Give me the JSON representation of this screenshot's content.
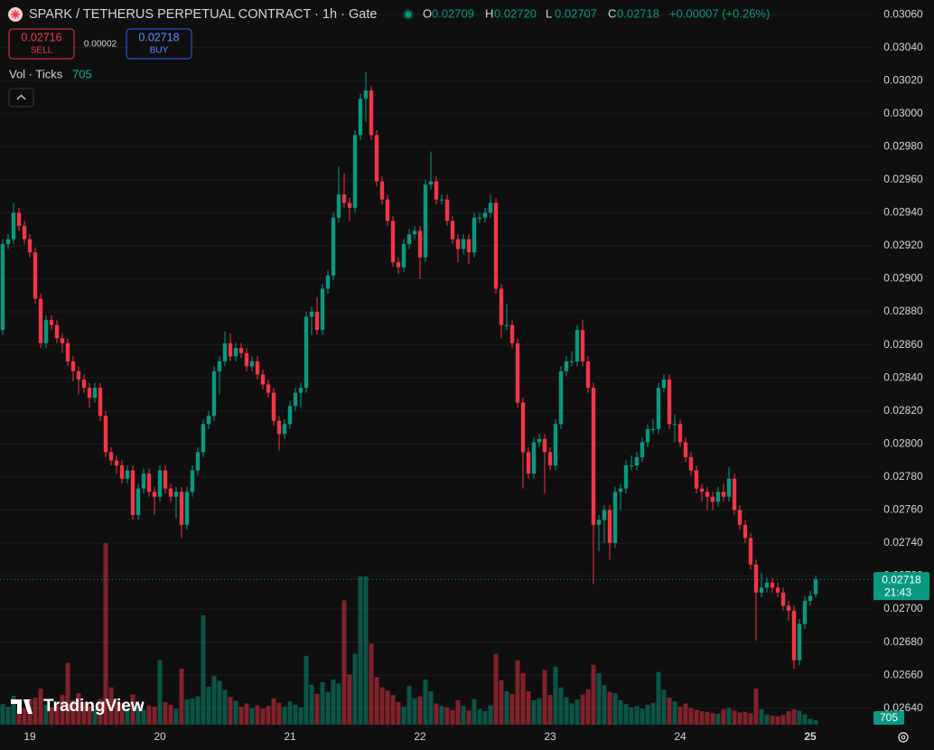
{
  "chart_data": {
    "type": "candlestick",
    "title": "SPARK / TETHERUS PERPETUAL CONTRACT · 1h · Gate",
    "legend_letters": [
      "O",
      "H",
      "L",
      "C"
    ],
    "legend_values": [
      "0.02709",
      "0.02720",
      "0.02707",
      "0.02718"
    ],
    "change": "+0.00007 (+0.26%)",
    "sell": {
      "price": 0.02716,
      "label": "SELL"
    },
    "buy": {
      "price": 0.02718,
      "label": "BUY"
    },
    "spread": 2e-05,
    "volume_title": "Vol · Ticks",
    "countdown": "21:43",
    "brand": "TradingView",
    "up_color": "#089981",
    "down_color": "#f23645",
    "grid": true,
    "ylim": [
      0.0263,
      0.030688
    ],
    "yticks": [
      {
        "value": 0.0264,
        "label": "0.02640"
      },
      {
        "value": 0.0266,
        "label": "0.02660"
      },
      {
        "value": 0.0268,
        "label": "0.02680"
      },
      {
        "value": 0.027,
        "label": "0.02700"
      },
      {
        "value": 0.0272,
        "label": "0.02720"
      },
      {
        "value": 0.0274,
        "label": "0.02740"
      },
      {
        "value": 0.0276,
        "label": "0.02760"
      },
      {
        "value": 0.0278,
        "label": "0.02780"
      },
      {
        "value": 0.028,
        "label": "0.02800"
      },
      {
        "value": 0.0282,
        "label": "0.02820"
      },
      {
        "value": 0.0284,
        "label": "0.02840"
      },
      {
        "value": 0.0286,
        "label": "0.02860"
      },
      {
        "value": 0.0288,
        "label": "0.02880"
      },
      {
        "value": 0.029,
        "label": "0.02900"
      },
      {
        "value": 0.0292,
        "label": "0.02920"
      },
      {
        "value": 0.0294,
        "label": "0.02940"
      },
      {
        "value": 0.0296,
        "label": "0.02960"
      },
      {
        "value": 0.0298,
        "label": "0.02980"
      },
      {
        "value": 0.03,
        "label": "0.03000"
      },
      {
        "value": 0.0302,
        "label": "0.03020"
      },
      {
        "value": 0.0304,
        "label": "0.03040"
      },
      {
        "value": 0.0306,
        "label": "0.03060"
      }
    ],
    "categories": [
      null,
      null,
      null,
      null,
      null,
      "19",
      null,
      null,
      null,
      null,
      null,
      null,
      null,
      null,
      null,
      null,
      null,
      null,
      null,
      null,
      null,
      null,
      null,
      null,
      null,
      null,
      null,
      null,
      null,
      "20",
      null,
      null,
      null,
      null,
      null,
      null,
      null,
      null,
      null,
      null,
      null,
      null,
      null,
      null,
      null,
      null,
      null,
      null,
      null,
      null,
      null,
      null,
      null,
      "21",
      null,
      null,
      null,
      null,
      null,
      null,
      null,
      null,
      null,
      null,
      null,
      null,
      null,
      null,
      null,
      null,
      null,
      null,
      null,
      null,
      null,
      null,
      null,
      "22",
      null,
      null,
      null,
      null,
      null,
      null,
      null,
      null,
      null,
      null,
      null,
      null,
      null,
      null,
      null,
      null,
      null,
      null,
      null,
      null,
      null,
      null,
      null,
      "23",
      null,
      null,
      null,
      null,
      null,
      null,
      null,
      null,
      null,
      null,
      null,
      null,
      null,
      null,
      null,
      null,
      null,
      null,
      null,
      null,
      null,
      null,
      null,
      "24",
      null,
      null,
      null,
      null,
      null,
      null,
      null,
      null,
      null,
      null,
      null,
      null,
      null,
      null,
      null,
      null,
      null,
      null,
      null,
      null,
      null,
      null,
      null,
      "25",
      null
    ],
    "ohlc": [
      [
        0.02869,
        0.02924,
        0.02866,
        0.02921
      ],
      [
        0.02921,
        0.02927,
        0.02918,
        0.02924
      ],
      [
        0.02924,
        0.02946,
        0.02921,
        0.0294
      ],
      [
        0.0294,
        0.02943,
        0.02929,
        0.02932
      ],
      [
        0.02932,
        0.02935,
        0.02921,
        0.02924
      ],
      [
        0.02924,
        0.02927,
        0.02913,
        0.02916
      ],
      [
        0.02916,
        0.02919,
        0.02885,
        0.02888
      ],
      [
        0.02888,
        0.02891,
        0.02858,
        0.02861
      ],
      [
        0.02861,
        0.02878,
        0.02858,
        0.02875
      ],
      [
        0.02875,
        0.02878,
        0.02869,
        0.02872
      ],
      [
        0.02872,
        0.02875,
        0.02861,
        0.02864
      ],
      [
        0.02864,
        0.02867,
        0.02855,
        0.02861
      ],
      [
        0.02861,
        0.02864,
        0.02847,
        0.0285
      ],
      [
        0.0285,
        0.02853,
        0.02838,
        0.02844
      ],
      [
        0.02844,
        0.02847,
        0.0283,
        0.02839
      ],
      [
        0.02839,
        0.02842,
        0.02831,
        0.02834
      ],
      [
        0.02834,
        0.02837,
        0.02822,
        0.02828
      ],
      [
        0.02828,
        0.02837,
        0.02825,
        0.02834
      ],
      [
        0.02834,
        0.02837,
        0.02814,
        0.02817
      ],
      [
        0.02817,
        0.0282,
        0.02792,
        0.02795
      ],
      [
        0.02795,
        0.02798,
        0.02787,
        0.0279
      ],
      [
        0.0279,
        0.02793,
        0.02782,
        0.02787
      ],
      [
        0.02787,
        0.0279,
        0.02776,
        0.02779
      ],
      [
        0.02779,
        0.02787,
        0.02776,
        0.02784
      ],
      [
        0.02784,
        0.02787,
        0.02754,
        0.02757
      ],
      [
        0.02757,
        0.02776,
        0.02754,
        0.02773
      ],
      [
        0.02773,
        0.02785,
        0.0277,
        0.02782
      ],
      [
        0.02782,
        0.02785,
        0.02768,
        0.02771
      ],
      [
        0.02771,
        0.02774,
        0.02757,
        0.02768
      ],
      [
        0.02768,
        0.02787,
        0.02765,
        0.02784
      ],
      [
        0.02784,
        0.02787,
        0.0277,
        0.02773
      ],
      [
        0.02773,
        0.02776,
        0.02765,
        0.02768
      ],
      [
        0.02768,
        0.02774,
        0.02755,
        0.02771
      ],
      [
        0.02771,
        0.02774,
        0.02743,
        0.02751
      ],
      [
        0.02751,
        0.02774,
        0.02748,
        0.02771
      ],
      [
        0.02771,
        0.02787,
        0.02768,
        0.02784
      ],
      [
        0.02784,
        0.02798,
        0.02781,
        0.02795
      ],
      [
        0.02795,
        0.02815,
        0.02792,
        0.02812
      ],
      [
        0.02812,
        0.0282,
        0.02809,
        0.02817
      ],
      [
        0.02817,
        0.02847,
        0.02814,
        0.02844
      ],
      [
        0.02844,
        0.02853,
        0.0283,
        0.0285
      ],
      [
        0.0285,
        0.02868,
        0.02847,
        0.02861
      ],
      [
        0.02861,
        0.02867,
        0.0285,
        0.02853
      ],
      [
        0.02853,
        0.02861,
        0.0285,
        0.02858
      ],
      [
        0.02858,
        0.02861,
        0.02852,
        0.02855
      ],
      [
        0.02855,
        0.02858,
        0.02844,
        0.02847
      ],
      [
        0.02847,
        0.02853,
        0.02844,
        0.0285
      ],
      [
        0.0285,
        0.02853,
        0.02839,
        0.02842
      ],
      [
        0.02842,
        0.02845,
        0.02833,
        0.02836
      ],
      [
        0.02836,
        0.02839,
        0.02828,
        0.02831
      ],
      [
        0.02831,
        0.02834,
        0.02811,
        0.02814
      ],
      [
        0.02814,
        0.02817,
        0.02796,
        0.02806
      ],
      [
        0.02806,
        0.02815,
        0.02803,
        0.02812
      ],
      [
        0.02812,
        0.02826,
        0.02809,
        0.02823
      ],
      [
        0.02823,
        0.02834,
        0.0282,
        0.02831
      ],
      [
        0.02831,
        0.02837,
        0.02822,
        0.02834
      ],
      [
        0.02834,
        0.0288,
        0.02831,
        0.02877
      ],
      [
        0.02877,
        0.02883,
        0.02866,
        0.0288
      ],
      [
        0.0288,
        0.02889,
        0.02866,
        0.02869
      ],
      [
        0.02869,
        0.02897,
        0.02866,
        0.02894
      ],
      [
        0.02894,
        0.02905,
        0.02891,
        0.02902
      ],
      [
        0.02902,
        0.0294,
        0.02899,
        0.02937
      ],
      [
        0.02937,
        0.02968,
        0.02934,
        0.02951
      ],
      [
        0.02951,
        0.02964,
        0.02943,
        0.02946
      ],
      [
        0.02946,
        0.02949,
        0.02935,
        0.02943
      ],
      [
        0.02943,
        0.0299,
        0.0294,
        0.02987
      ],
      [
        0.02987,
        0.03012,
        0.02984,
        0.03009
      ],
      [
        0.03009,
        0.03025,
        0.02995,
        0.03014
      ],
      [
        0.03014,
        0.03017,
        0.02984,
        0.02987
      ],
      [
        0.02987,
        0.0299,
        0.02956,
        0.02959
      ],
      [
        0.02959,
        0.02962,
        0.02945,
        0.02948
      ],
      [
        0.02948,
        0.02951,
        0.02932,
        0.02935
      ],
      [
        0.02935,
        0.02938,
        0.02907,
        0.0291
      ],
      [
        0.0291,
        0.02913,
        0.02903,
        0.02907
      ],
      [
        0.02907,
        0.02924,
        0.02904,
        0.02921
      ],
      [
        0.02921,
        0.0293,
        0.02918,
        0.02927
      ],
      [
        0.02927,
        0.02932,
        0.02924,
        0.02929
      ],
      [
        0.02929,
        0.02932,
        0.029,
        0.02913
      ],
      [
        0.02913,
        0.0296,
        0.0291,
        0.02957
      ],
      [
        0.02957,
        0.02977,
        0.02954,
        0.02959
      ],
      [
        0.02959,
        0.02962,
        0.02945,
        0.02948
      ],
      [
        0.02948,
        0.02951,
        0.02945,
        0.02948
      ],
      [
        0.02948,
        0.02951,
        0.02932,
        0.02935
      ],
      [
        0.02935,
        0.02938,
        0.02921,
        0.02924
      ],
      [
        0.02924,
        0.02927,
        0.0291,
        0.02918
      ],
      [
        0.02918,
        0.02927,
        0.02915,
        0.02924
      ],
      [
        0.02924,
        0.02927,
        0.02909,
        0.02916
      ],
      [
        0.02916,
        0.0294,
        0.02913,
        0.02937
      ],
      [
        0.02937,
        0.0294,
        0.02934,
        0.02937
      ],
      [
        0.02937,
        0.02943,
        0.02934,
        0.0294
      ],
      [
        0.0294,
        0.02951,
        0.02937,
        0.02946
      ],
      [
        0.02946,
        0.02949,
        0.02891,
        0.02894
      ],
      [
        0.02894,
        0.02897,
        0.02864,
        0.02872
      ],
      [
        0.02872,
        0.02885,
        0.02869,
        0.02872
      ],
      [
        0.02872,
        0.02875,
        0.02858,
        0.02861
      ],
      [
        0.02861,
        0.02864,
        0.02822,
        0.02825
      ],
      [
        0.02825,
        0.02828,
        0.02773,
        0.02795
      ],
      [
        0.02795,
        0.02798,
        0.02779,
        0.02782
      ],
      [
        0.02782,
        0.02804,
        0.02779,
        0.02801
      ],
      [
        0.02801,
        0.02806,
        0.02798,
        0.02803
      ],
      [
        0.02803,
        0.02806,
        0.0277,
        0.02795
      ],
      [
        0.02795,
        0.02798,
        0.02784,
        0.02787
      ],
      [
        0.02787,
        0.02815,
        0.02784,
        0.02812
      ],
      [
        0.02812,
        0.02847,
        0.02809,
        0.02844
      ],
      [
        0.02844,
        0.02853,
        0.02841,
        0.0285
      ],
      [
        0.0285,
        0.02856,
        0.02847,
        0.0285
      ],
      [
        0.0285,
        0.02872,
        0.02847,
        0.02869
      ],
      [
        0.02869,
        0.02875,
        0.02847,
        0.0285
      ],
      [
        0.0285,
        0.02853,
        0.02831,
        0.02834
      ],
      [
        0.02834,
        0.02837,
        0.02715,
        0.02751
      ],
      [
        0.02751,
        0.02757,
        0.02735,
        0.02754
      ],
      [
        0.02754,
        0.02763,
        0.0274,
        0.0276
      ],
      [
        0.0276,
        0.02763,
        0.0273,
        0.0274
      ],
      [
        0.0274,
        0.02774,
        0.02737,
        0.02771
      ],
      [
        0.02771,
        0.02776,
        0.0276,
        0.02773
      ],
      [
        0.02773,
        0.0279,
        0.0277,
        0.02787
      ],
      [
        0.02787,
        0.02793,
        0.02784,
        0.02787
      ],
      [
        0.02787,
        0.02795,
        0.02784,
        0.02792
      ],
      [
        0.02792,
        0.02804,
        0.02789,
        0.02801
      ],
      [
        0.02801,
        0.02812,
        0.02798,
        0.02809
      ],
      [
        0.02809,
        0.02815,
        0.02806,
        0.02809
      ],
      [
        0.02809,
        0.02837,
        0.02806,
        0.02834
      ],
      [
        0.02834,
        0.02842,
        0.02831,
        0.02839
      ],
      [
        0.02839,
        0.02842,
        0.02809,
        0.02812
      ],
      [
        0.02812,
        0.02818,
        0.02801,
        0.02812
      ],
      [
        0.02812,
        0.02815,
        0.02798,
        0.02801
      ],
      [
        0.02801,
        0.02804,
        0.02789,
        0.02792
      ],
      [
        0.02792,
        0.02795,
        0.02781,
        0.02784
      ],
      [
        0.02784,
        0.02787,
        0.0277,
        0.02773
      ],
      [
        0.02773,
        0.02776,
        0.02765,
        0.02771
      ],
      [
        0.02771,
        0.02774,
        0.0276,
        0.02768
      ],
      [
        0.02768,
        0.02771,
        0.0276,
        0.02765
      ],
      [
        0.02765,
        0.02774,
        0.02762,
        0.02771
      ],
      [
        0.02771,
        0.02776,
        0.02765,
        0.02768
      ],
      [
        0.02768,
        0.02786,
        0.02765,
        0.02779
      ],
      [
        0.02779,
        0.02782,
        0.02757,
        0.0276
      ],
      [
        0.0276,
        0.02763,
        0.02748,
        0.02751
      ],
      [
        0.02751,
        0.02754,
        0.0274,
        0.02743
      ],
      [
        0.02743,
        0.02746,
        0.02724,
        0.02727
      ],
      [
        0.02727,
        0.0273,
        0.02681,
        0.0271
      ],
      [
        0.0271,
        0.02722,
        0.02707,
        0.02713
      ],
      [
        0.02713,
        0.02719,
        0.0271,
        0.02716
      ],
      [
        0.02716,
        0.02719,
        0.0271,
        0.02713
      ],
      [
        0.02713,
        0.02716,
        0.02707,
        0.0271
      ],
      [
        0.0271,
        0.02713,
        0.02699,
        0.02702
      ],
      [
        0.02702,
        0.02705,
        0.02693,
        0.02699
      ],
      [
        0.02699,
        0.02702,
        0.02664,
        0.02669
      ],
      [
        0.02669,
        0.02694,
        0.02666,
        0.02691
      ],
      [
        0.02691,
        0.02708,
        0.02688,
        0.02705
      ],
      [
        0.02705,
        0.02711,
        0.02702,
        0.02708
      ],
      [
        0.02709,
        0.0272,
        0.02707,
        0.02718
      ]
    ],
    "volume": [
      3200,
      2800,
      4500,
      2400,
      2600,
      3900,
      4200,
      5600,
      3100,
      2700,
      3300,
      4600,
      9600,
      3800,
      4900,
      3500,
      2900,
      2500,
      4000,
      28200,
      5800,
      3600,
      3400,
      2600,
      4700,
      3200,
      2300,
      3000,
      2800,
      10000,
      3500,
      3100,
      2500,
      8700,
      3900,
      4100,
      4400,
      17000,
      5900,
      7600,
      6800,
      5400,
      4300,
      3700,
      2800,
      3300,
      2600,
      3000,
      2500,
      2900,
      4100,
      3400,
      2800,
      3600,
      3100,
      2700,
      10700,
      6200,
      4800,
      6600,
      5100,
      7000,
      6400,
      19300,
      7800,
      11000,
      23000,
      23000,
      12600,
      7400,
      5800,
      5300,
      4600,
      3500,
      2800,
      6000,
      4100,
      4400,
      7000,
      5200,
      3300,
      2900,
      2700,
      2300,
      3800,
      2900,
      2200,
      4000,
      2400,
      2100,
      3000,
      11000,
      6900,
      5200,
      4800,
      10000,
      8000,
      5200,
      3800,
      4100,
      8500,
      4600,
      9000,
      5800,
      4300,
      3300,
      3900,
      4700,
      5500,
      9300,
      8000,
      6100,
      5100,
      4900,
      3800,
      3200,
      2700,
      2900,
      2500,
      3100,
      3400,
      8200,
      5400,
      4200,
      3600,
      2800,
      3300,
      2600,
      2300,
      2100,
      2000,
      1800,
      1700,
      2400,
      2600,
      2200,
      1900,
      2000,
      1800,
      5600,
      2400,
      1600,
      1400,
      1300,
      1500,
      2100,
      2400,
      2200,
      1600,
      900,
      705
    ]
  }
}
